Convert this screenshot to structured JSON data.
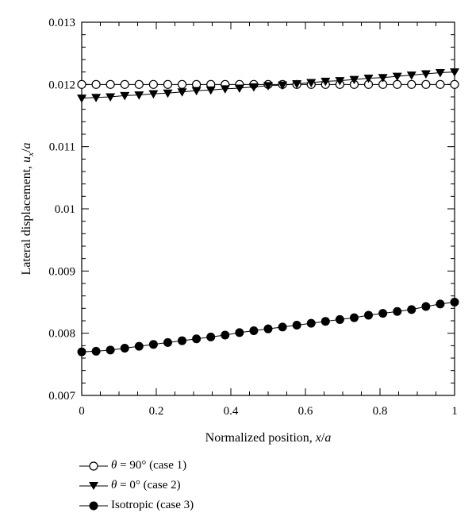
{
  "chart_data": {
    "type": "line",
    "xlabel": "Normalized position, x/a",
    "ylabel": "Lateral displacement, u_x/a",
    "xlabel_parts": [
      "Normalized position, ",
      "x",
      "/",
      "a"
    ],
    "ylabel_parts": [
      "Lateral displacement, ",
      "u",
      "x",
      "/",
      "a"
    ],
    "xlim": [
      0,
      1
    ],
    "ylim": [
      0.007,
      0.013
    ],
    "xticks": [
      "0",
      "0.2",
      "0.4",
      "0.6",
      "0.8",
      "1"
    ],
    "yticks": [
      "0.007",
      "0.008",
      "0.009",
      "0.01",
      "0.011",
      "0.012",
      "0.013"
    ],
    "grid": false,
    "legend_position": "below",
    "x": [
      0,
      0.0385,
      0.0769,
      0.1154,
      0.1538,
      0.1923,
      0.2308,
      0.2692,
      0.3077,
      0.3462,
      0.3846,
      0.4231,
      0.4615,
      0.5,
      0.5385,
      0.5769,
      0.6154,
      0.6538,
      0.6923,
      0.7308,
      0.7692,
      0.8077,
      0.8462,
      0.8846,
      0.9231,
      0.9615,
      1
    ],
    "series": [
      {
        "name_parts": [
          "θ",
          " = 90° (case 1)"
        ],
        "marker": "open-circle",
        "values": [
          0.012,
          0.012,
          0.012,
          0.012,
          0.012,
          0.012,
          0.012,
          0.012,
          0.012,
          0.012,
          0.012,
          0.012,
          0.012,
          0.012,
          0.012,
          0.012,
          0.012,
          0.012,
          0.012,
          0.012,
          0.012,
          0.012,
          0.012,
          0.012,
          0.012,
          0.012,
          0.012
        ]
      },
      {
        "name_parts": [
          "θ",
          " = 0° (case 2)"
        ],
        "marker": "filled-triangle-down",
        "values": [
          0.01178,
          0.01179,
          0.0118,
          0.01182,
          0.01183,
          0.01185,
          0.01186,
          0.01188,
          0.0119,
          0.01191,
          0.01193,
          0.01194,
          0.01196,
          0.01198,
          0.01199,
          0.01201,
          0.01203,
          0.01205,
          0.01206,
          0.01208,
          0.0121,
          0.01211,
          0.01213,
          0.01215,
          0.01217,
          0.01219,
          0.0122
        ]
      },
      {
        "name_parts": [
          "Isotropic (case 3)"
        ],
        "marker": "filled-circle",
        "values": [
          0.0077,
          0.00771,
          0.00773,
          0.00776,
          0.00779,
          0.00782,
          0.00785,
          0.00788,
          0.00791,
          0.00794,
          0.00797,
          0.00801,
          0.00804,
          0.00807,
          0.0081,
          0.00813,
          0.00816,
          0.00819,
          0.00822,
          0.00825,
          0.00829,
          0.00832,
          0.00835,
          0.00838,
          0.00843,
          0.00847,
          0.0085
        ]
      }
    ]
  }
}
